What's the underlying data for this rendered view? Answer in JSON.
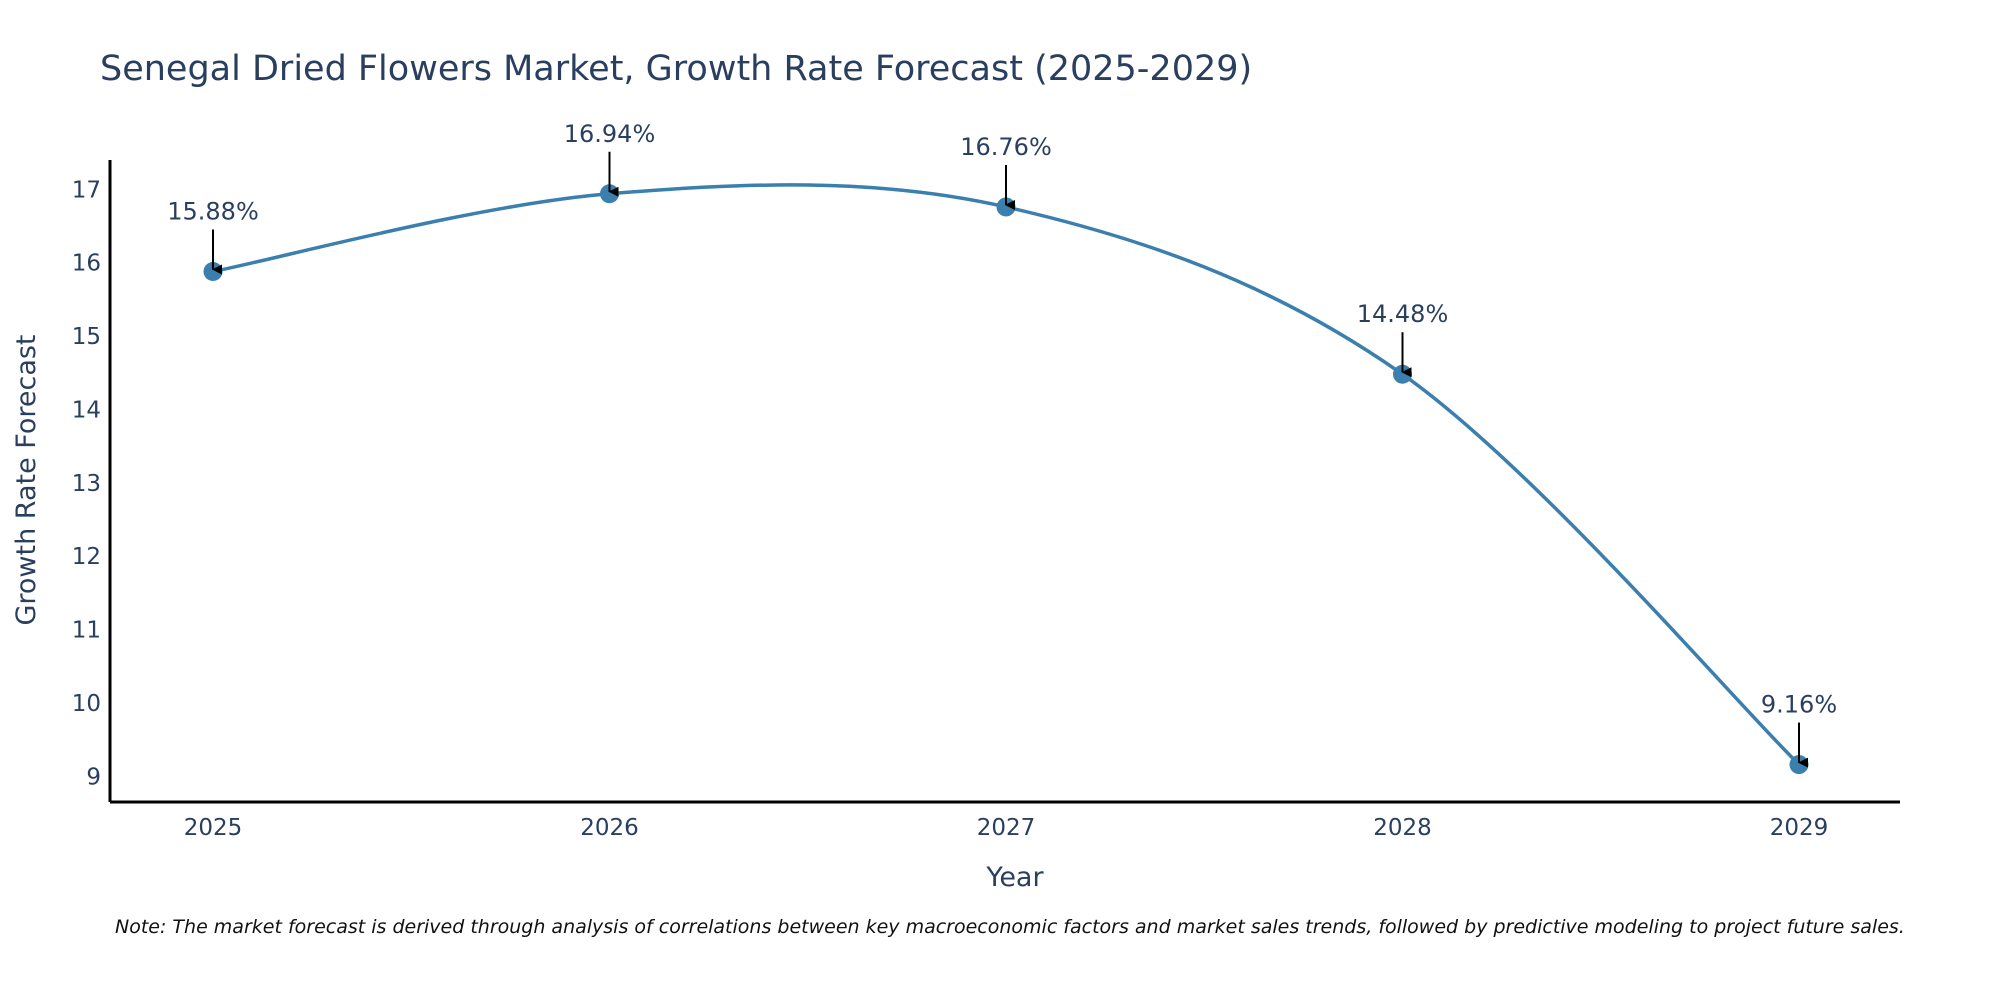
{
  "chart_data": {
    "type": "line",
    "title": "Senegal Dried Flowers Market, Growth Rate Forecast (2025-2029)",
    "xlabel": "Year",
    "ylabel": "Growth Rate Forecast",
    "categories": [
      "2025",
      "2026",
      "2027",
      "2028",
      "2029"
    ],
    "values": [
      15.88,
      16.94,
      16.76,
      14.48,
      9.16
    ],
    "data_labels": [
      "15.88%",
      "16.94%",
      "16.76%",
      "14.48%",
      "9.16%"
    ],
    "y_ticks": [
      9,
      10,
      11,
      12,
      13,
      14,
      15,
      16,
      17
    ],
    "ylim": [
      8.65,
      17.4
    ],
    "line_shape": "spline",
    "grid": false,
    "line_color": "#3a7fad",
    "marker_color": "#3a7fad",
    "arrow_color": "#000000"
  },
  "note": "Note: The market forecast is derived through analysis of correlations between key macroeconomic factors and market sales trends, followed by predictive modeling to project future sales."
}
